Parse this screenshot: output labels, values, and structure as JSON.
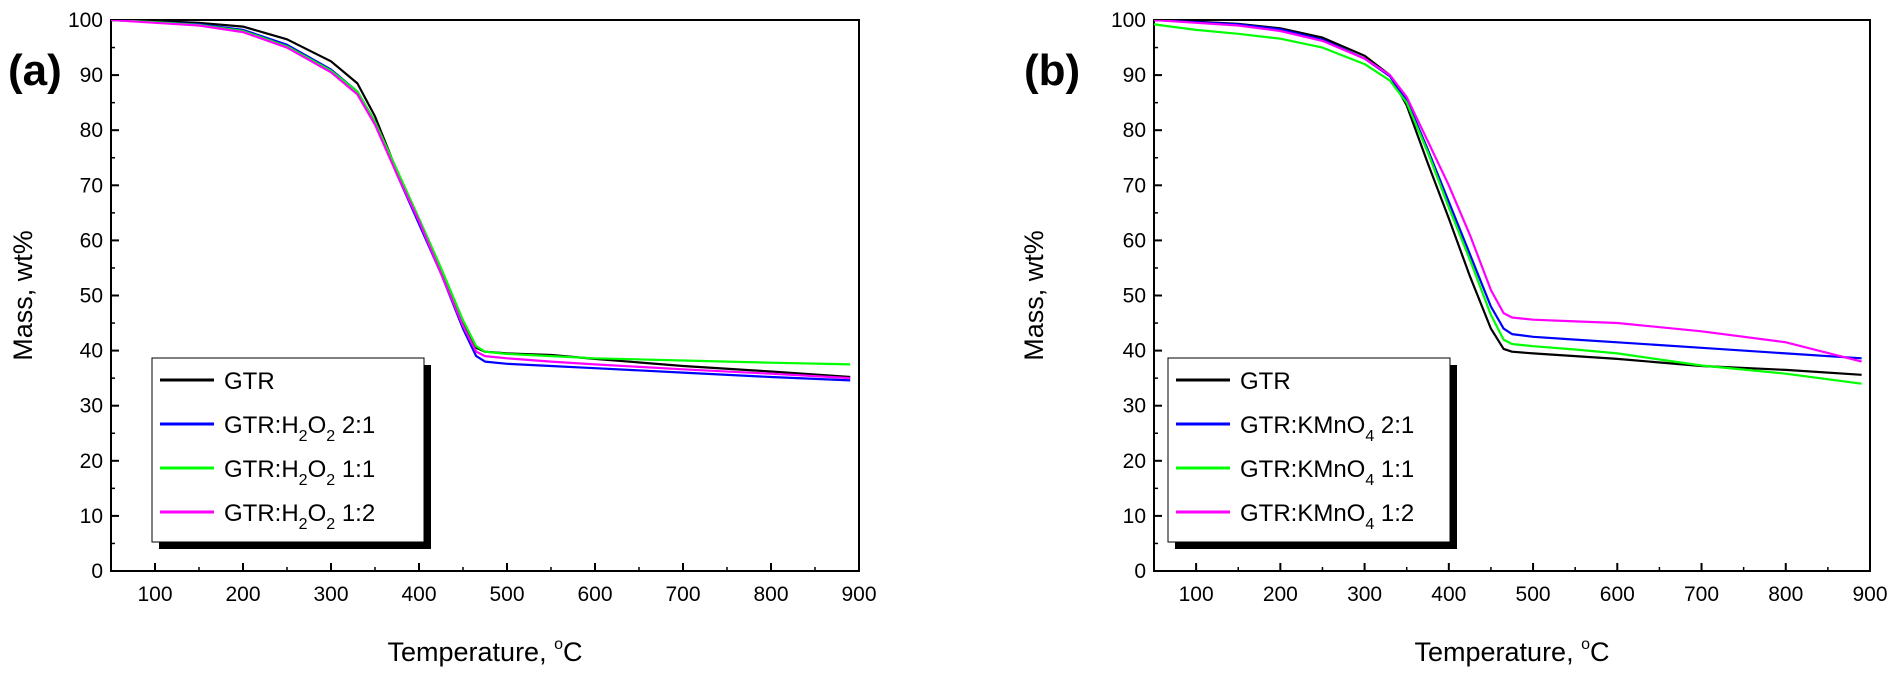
{
  "chart_data": [
    {
      "type": "line",
      "panel_label": "(a)",
      "xlabel": "Temperature, ",
      "xlabel_unit_sup": "o",
      "xlabel_unit": "C",
      "ylabel": "Mass, wt%",
      "xlim": [
        50,
        900
      ],
      "ylim": [
        0,
        100
      ],
      "xticks": [
        100,
        200,
        300,
        400,
        500,
        600,
        700,
        800,
        900
      ],
      "yticks": [
        0,
        10,
        20,
        30,
        40,
        50,
        60,
        70,
        80,
        90,
        100
      ],
      "legend_position": "bottom-left",
      "series": [
        {
          "name": "GTR",
          "name_main": "GTR",
          "name_sub": "",
          "name_post": "",
          "color": "#000000",
          "x": [
            50,
            100,
            150,
            200,
            250,
            300,
            330,
            350,
            375,
            400,
            425,
            450,
            465,
            475,
            500,
            550,
            600,
            700,
            800,
            890
          ],
          "y": [
            100,
            99.8,
            99.5,
            98.8,
            96.5,
            92.5,
            88.5,
            82.5,
            72.5,
            63.5,
            54.5,
            45,
            40.5,
            39.8,
            39.5,
            39.2,
            38.5,
            37.2,
            36.2,
            35.2
          ]
        },
        {
          "name": "GTR:H2O2 2:1",
          "name_main": "GTR:H",
          "name_sub": "2",
          "name_mid": "O",
          "name_sub2": "2",
          "name_post": " 2:1",
          "color": "#0000ff",
          "x": [
            50,
            100,
            150,
            200,
            250,
            300,
            330,
            350,
            375,
            400,
            425,
            450,
            465,
            475,
            500,
            550,
            600,
            700,
            800,
            890
          ],
          "y": [
            100,
            99.6,
            99.2,
            98.2,
            95.5,
            91.0,
            87.0,
            81.5,
            72.0,
            63.0,
            54.0,
            44.0,
            39.0,
            38.0,
            37.6,
            37.2,
            36.8,
            36.0,
            35.2,
            34.6
          ]
        },
        {
          "name": "GTR:H2O2 1:1",
          "name_main": "GTR:H",
          "name_sub": "2",
          "name_mid": "O",
          "name_sub2": "2",
          "name_post": " 1:1",
          "color": "#00ff00",
          "x": [
            50,
            100,
            150,
            200,
            250,
            300,
            330,
            350,
            375,
            400,
            425,
            450,
            465,
            475,
            500,
            550,
            600,
            700,
            800,
            890
          ],
          "y": [
            100,
            99.6,
            99.1,
            98.0,
            95.2,
            90.8,
            87.0,
            81.5,
            72.8,
            64.0,
            55.0,
            45.5,
            40.8,
            39.8,
            39.4,
            39.0,
            38.6,
            38.2,
            37.8,
            37.5
          ]
        },
        {
          "name": "GTR:H2O2 1:2",
          "name_main": "GTR:H",
          "name_sub": "2",
          "name_mid": "O",
          "name_sub2": "2",
          "name_post": " 1:2",
          "color": "#ff00ff",
          "x": [
            50,
            100,
            150,
            200,
            250,
            300,
            330,
            350,
            375,
            400,
            425,
            450,
            465,
            475,
            500,
            550,
            600,
            700,
            800,
            890
          ],
          "y": [
            100,
            99.5,
            99.0,
            97.8,
            95.0,
            90.5,
            86.5,
            81.0,
            72.0,
            63.5,
            54.0,
            44.5,
            39.8,
            39.0,
            38.6,
            38.0,
            37.5,
            36.6,
            35.8,
            35.0
          ]
        }
      ]
    },
    {
      "type": "line",
      "panel_label": "(b)",
      "xlabel": "Temperature, ",
      "xlabel_unit_sup": "o",
      "xlabel_unit": "C",
      "ylabel": "Mass, wt%",
      "xlim": [
        50,
        900
      ],
      "ylim": [
        0,
        100
      ],
      "xticks": [
        100,
        200,
        300,
        400,
        500,
        600,
        700,
        800,
        900
      ],
      "yticks": [
        0,
        10,
        20,
        30,
        40,
        50,
        60,
        70,
        80,
        90,
        100
      ],
      "legend_position": "bottom-left",
      "series": [
        {
          "name": "GTR",
          "name_main": "GTR",
          "name_sub": "",
          "name_post": "",
          "color": "#000000",
          "x": [
            50,
            100,
            150,
            200,
            250,
            300,
            330,
            350,
            375,
            400,
            425,
            450,
            465,
            475,
            500,
            550,
            600,
            700,
            800,
            890
          ],
          "y": [
            100,
            99.7,
            99.3,
            98.5,
            96.8,
            93.5,
            90.0,
            84.5,
            74.0,
            64.0,
            53.5,
            44.0,
            40.3,
            39.8,
            39.5,
            39.0,
            38.5,
            37.2,
            36.5,
            35.6
          ]
        },
        {
          "name": "GTR:KMnO4 2:1",
          "name_main": "GTR:KMnO",
          "name_sub": "4",
          "name_post": " 2:1",
          "color": "#0000ff",
          "x": [
            50,
            100,
            150,
            200,
            250,
            300,
            330,
            350,
            375,
            400,
            425,
            450,
            465,
            475,
            500,
            550,
            600,
            700,
            800,
            890
          ],
          "y": [
            100,
            99.6,
            99.2,
            98.3,
            96.4,
            93.0,
            89.8,
            85.5,
            76.5,
            67.0,
            57.5,
            48.0,
            44.0,
            43.0,
            42.5,
            42.0,
            41.5,
            40.5,
            39.5,
            38.6
          ]
        },
        {
          "name": "GTR:KMnO4 1:1",
          "name_main": "GTR:KMnO",
          "name_sub": "4",
          "name_post": " 1:1",
          "color": "#00ff00",
          "x": [
            50,
            100,
            150,
            200,
            250,
            300,
            330,
            350,
            375,
            400,
            425,
            450,
            465,
            475,
            500,
            550,
            600,
            700,
            800,
            890
          ],
          "y": [
            99.2,
            98.2,
            97.5,
            96.6,
            95.0,
            92.0,
            89.0,
            85.0,
            76.0,
            66.0,
            56.5,
            46.5,
            42.0,
            41.2,
            40.8,
            40.2,
            39.5,
            37.3,
            35.8,
            34.0
          ]
        },
        {
          "name": "GTR:KMnO4 1:2",
          "name_main": "GTR:KMnO",
          "name_sub": "4",
          "name_post": " 1:2",
          "color": "#ff00ff",
          "x": [
            50,
            100,
            150,
            200,
            250,
            300,
            330,
            350,
            375,
            400,
            425,
            450,
            465,
            475,
            500,
            550,
            600,
            700,
            800,
            890
          ],
          "y": [
            100,
            99.5,
            99.0,
            98.0,
            96.2,
            93.0,
            90.0,
            86.0,
            78.0,
            70.0,
            61.0,
            51.0,
            46.8,
            46.0,
            45.6,
            45.3,
            45.0,
            43.5,
            41.5,
            38.0
          ]
        }
      ]
    }
  ]
}
